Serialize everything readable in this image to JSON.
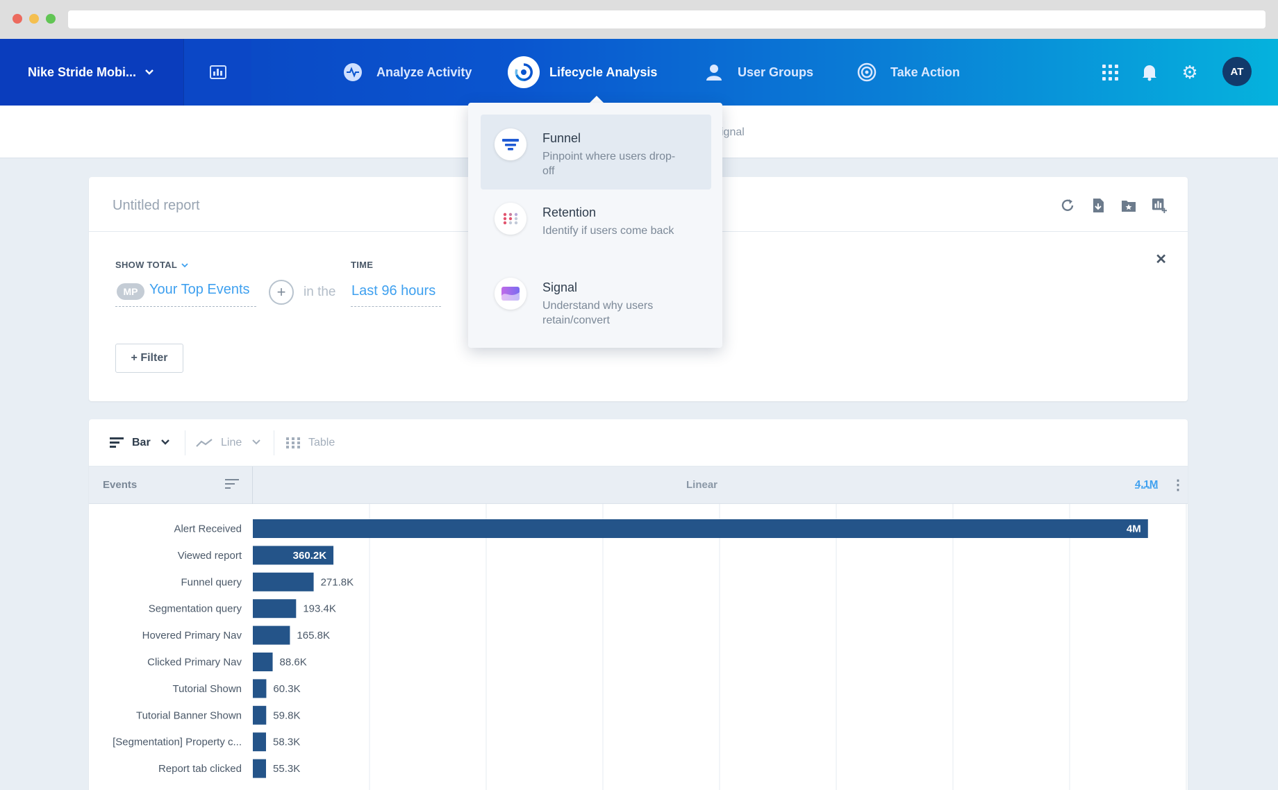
{
  "browser": {},
  "topnav": {
    "project_name": "Nike Stride Mobi...",
    "items": [
      {
        "label": "Analyze Activity",
        "icon": "pulse-icon"
      },
      {
        "label": "Lifecycle Analysis",
        "icon": "lifecycle-icon",
        "active": true
      },
      {
        "label": "User Groups",
        "icon": "user-icon"
      },
      {
        "label": "Take Action",
        "icon": "target-icon"
      }
    ],
    "right_icons": [
      "apps-grid-icon",
      "bell-icon",
      "gear-icon"
    ],
    "avatar_initials": "AT",
    "brand_gradient": [
      "#0b3fbd",
      "#05b2dd"
    ]
  },
  "subheader": {
    "visible_tab_fragment": "ignal"
  },
  "dropdown": {
    "items": [
      {
        "title": "Funnel",
        "description": "Pinpoint where users drop-off",
        "icon": "funnel-icon"
      },
      {
        "title": "Retention",
        "description": "Identify if users come back",
        "icon": "retention-dots-icon"
      },
      {
        "title": "Signal",
        "description": "Understand why users retain/convert",
        "icon": "signal-wave-icon"
      }
    ]
  },
  "report": {
    "title": "Untitled report",
    "toolbar_icons": [
      "refresh-icon",
      "download-icon",
      "bookmark-icon",
      "add-to-dashboard-icon"
    ],
    "show_total_label": "SHOW TOTAL",
    "time_label": "TIME",
    "mp_badge": "MP",
    "events_value": "Your Top Events",
    "in_the": "in the",
    "time_value": "Last 96 hours",
    "filter_label": "+ Filter",
    "close": "✕"
  },
  "chart_panel": {
    "tabs": [
      {
        "label": "Bar",
        "active": true
      },
      {
        "label": "Line"
      },
      {
        "label": "Table"
      }
    ],
    "events_header": "Events",
    "scale_label": "Linear",
    "axis_max_label": "4.1M"
  },
  "chart_data": {
    "type": "bar",
    "orientation": "horizontal",
    "categories": [
      "Alert Received",
      "Viewed report",
      "Funnel query",
      "Segmentation query",
      "Hovered Primary Nav",
      "Clicked Primary Nav",
      "Tutorial Shown",
      "Tutorial Banner Shown",
      "[Segmentation] Property c...",
      "Report tab clicked"
    ],
    "values": [
      4000000,
      360200,
      271800,
      193400,
      165800,
      88600,
      60300,
      59800,
      58300,
      55300
    ],
    "value_labels": [
      "4M",
      "360.2K",
      "271.8K",
      "193.4K",
      "165.8K",
      "88.6K",
      "60.3K",
      "59.8K",
      "58.3K",
      "55.3K"
    ],
    "xlim": [
      0,
      4100000
    ],
    "bar_color": "#245489",
    "grid": true
  }
}
